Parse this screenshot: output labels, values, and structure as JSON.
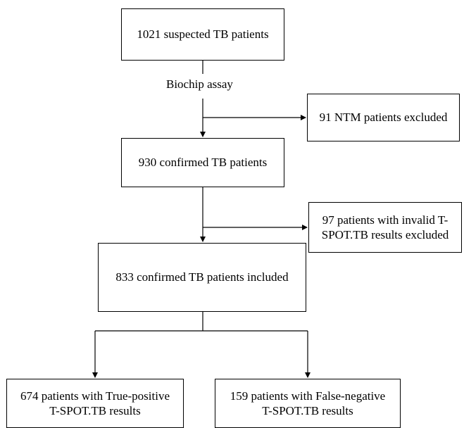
{
  "flowchart": {
    "start": {
      "text": "1021 suspected TB patients"
    },
    "step1_label": {
      "text": "Biochip assay"
    },
    "exclusion1": {
      "text": "91 NTM patients excluded"
    },
    "confirmed": {
      "text": "930 confirmed TB patients"
    },
    "exclusion2": {
      "lines": [
        "97 patients with invalid T-",
        "SPOT.TB results excluded"
      ]
    },
    "included": {
      "text": "833 confirmed TB patients included"
    },
    "outcome_positive": {
      "lines": [
        "674 patients with True-positive",
        "T-SPOT.TB  results"
      ]
    },
    "outcome_negative": {
      "lines": [
        "159 patients with False-negative",
        "T-SPOT.TB results"
      ]
    }
  },
  "colors": {
    "stroke": "#000000",
    "background": "#ffffff"
  }
}
